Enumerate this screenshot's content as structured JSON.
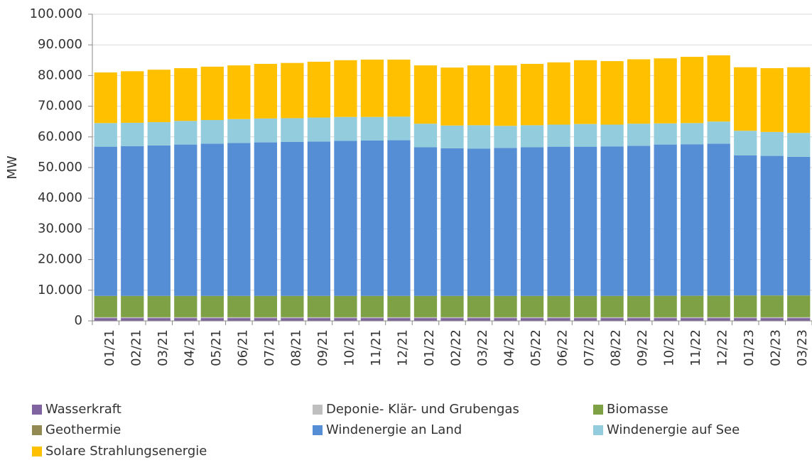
{
  "chart_data": {
    "type": "stacked-bar",
    "y_label": "MW",
    "categories": [
      "01/21",
      "02/21",
      "03/21",
      "04/21",
      "05/21",
      "06/21",
      "07/21",
      "08/21",
      "09/21",
      "10/21",
      "11/21",
      "12/21",
      "01/22",
      "02/22",
      "03/22",
      "04/22",
      "05/22",
      "06/22",
      "07/22",
      "08/22",
      "09/22",
      "10/22",
      "11/22",
      "12/22",
      "01/23",
      "02/23",
      "03/23"
    ],
    "series": [
      {
        "name": "Wasserkraft",
        "color": "#8064a2",
        "values": [
          900,
          900,
          900,
          900,
          900,
          900,
          900,
          900,
          900,
          900,
          900,
          900,
          900,
          900,
          900,
          900,
          900,
          900,
          900,
          900,
          900,
          900,
          900,
          900,
          900,
          900,
          900
        ]
      },
      {
        "name": "Deponie- Klär- und Grubengas",
        "color": "#bfbfbf",
        "values": [
          300,
          300,
          300,
          300,
          300,
          300,
          300,
          300,
          300,
          300,
          300,
          300,
          300,
          300,
          300,
          300,
          300,
          300,
          300,
          300,
          300,
          300,
          300,
          300,
          300,
          300,
          300
        ]
      },
      {
        "name": "Biomasse",
        "color": "#7ea145",
        "values": [
          6900,
          6900,
          6900,
          6900,
          6900,
          6900,
          6900,
          6900,
          6900,
          6900,
          6900,
          6900,
          6900,
          6900,
          6900,
          6900,
          6900,
          6900,
          6900,
          6900,
          6900,
          6950,
          6950,
          7000,
          7050,
          7050,
          7050
        ]
      },
      {
        "name": "Geothermie",
        "color": "#938953",
        "values": [
          50,
          50,
          50,
          50,
          50,
          50,
          50,
          50,
          50,
          50,
          50,
          50,
          50,
          50,
          50,
          50,
          50,
          50,
          50,
          50,
          50,
          50,
          50,
          50,
          50,
          50,
          50
        ]
      },
      {
        "name": "Windenergie an Land",
        "color": "#558ed5",
        "values": [
          48650,
          48850,
          49050,
          49350,
          49650,
          49850,
          50050,
          50250,
          50350,
          50550,
          50650,
          50750,
          48450,
          48150,
          48050,
          48250,
          48450,
          48650,
          48650,
          48750,
          48950,
          49300,
          49400,
          49550,
          45700,
          45500,
          45200
        ]
      },
      {
        "name": "Windenergie auf See",
        "color": "#93cddd",
        "values": [
          7700,
          7600,
          7600,
          7700,
          7700,
          7800,
          7800,
          7700,
          7800,
          7800,
          7700,
          7700,
          7700,
          7400,
          7600,
          7200,
          7200,
          7200,
          7400,
          7100,
          7200,
          6900,
          6900,
          7200,
          8000,
          7800,
          7800
        ]
      },
      {
        "name": "Solare Strahlungsenergie",
        "color": "#ffc000",
        "values": [
          16500,
          16800,
          17100,
          17200,
          17400,
          17500,
          17800,
          18000,
          18200,
          18500,
          18700,
          18600,
          19000,
          18900,
          19500,
          19700,
          20000,
          20300,
          20800,
          20700,
          21000,
          21200,
          21600,
          21600,
          20700,
          20800,
          21400
        ]
      }
    ],
    "ylim": [
      0,
      100000
    ],
    "yticks": [
      0,
      {
        "value": 10000,
        "label": "10.000"
      },
      {
        "value": 20000,
        "label": "20.000"
      },
      {
        "value": 30000,
        "label": "30.000"
      },
      {
        "value": 40000,
        "label": "40.000"
      },
      {
        "value": 50000,
        "label": "50.000"
      },
      {
        "value": 60000,
        "label": "60.000"
      },
      {
        "value": 70000,
        "label": "70.000"
      },
      {
        "value": 80000,
        "label": "80.000"
      },
      {
        "value": 90000,
        "label": "90.000"
      },
      {
        "value": 100000,
        "label": "100.000"
      }
    ],
    "grid": true
  }
}
